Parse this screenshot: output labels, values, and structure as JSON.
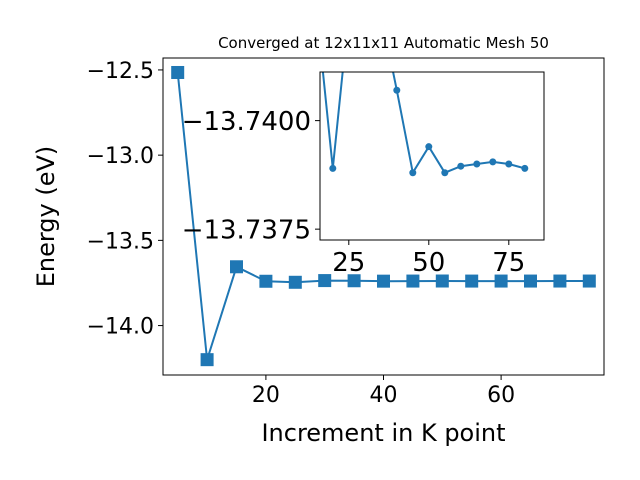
{
  "chart_data": [
    {
      "type": "line",
      "title": "Converged at 12x11x11 Automatic Mesh 50",
      "xlabel": "Increment in K point",
      "ylabel": "Energy (eV)",
      "xlim": [
        2.5,
        77.5
      ],
      "ylim": [
        -14.29,
        -12.43
      ],
      "xticks": [
        20,
        40,
        60
      ],
      "xtick_labels": [
        "20",
        "40",
        "60"
      ],
      "yticks": [
        -12.5,
        -13.0,
        -13.5,
        -14.0
      ],
      "ytick_labels": [
        "−12.5",
        "−13.0",
        "−13.5",
        "−14.0"
      ],
      "marker": "square",
      "color": "#1f77b4",
      "grid": false,
      "x": [
        5,
        10,
        15,
        20,
        25,
        30,
        35,
        40,
        45,
        50,
        55,
        60,
        65,
        70,
        75
      ],
      "y": [
        -12.515,
        -14.2,
        -13.655,
        -13.74,
        -13.746,
        -13.736,
        -13.737,
        -13.7394,
        -13.7388,
        -13.7385,
        -13.7389,
        -13.7388,
        -13.7388,
        -13.7387,
        -13.7387
      ]
    },
    {
      "type": "line",
      "title": "",
      "inset": true,
      "xlim": [
        16,
        86
      ],
      "ylim": [
        -13.73725,
        -13.74112
      ],
      "xticks": [
        25,
        50,
        75
      ],
      "xtick_labels": [
        "25",
        "50",
        "75"
      ],
      "yticks": [
        -13.74,
        -13.7375
      ],
      "ytick_labels": [
        "−13.7400",
        "−13.7375"
      ],
      "marker": "circle",
      "color": "#1f77b4",
      "grid": false,
      "x": [
        15,
        20,
        25,
        35,
        40,
        45,
        50,
        55,
        60,
        65,
        70,
        75,
        80
      ],
      "y": [
        -13.7425,
        -13.7389,
        -13.7425,
        -13.7425,
        -13.7407,
        -13.7388,
        -13.7394,
        -13.7388,
        -13.73895,
        -13.739,
        -13.73905,
        -13.739,
        -13.7389
      ]
    }
  ]
}
